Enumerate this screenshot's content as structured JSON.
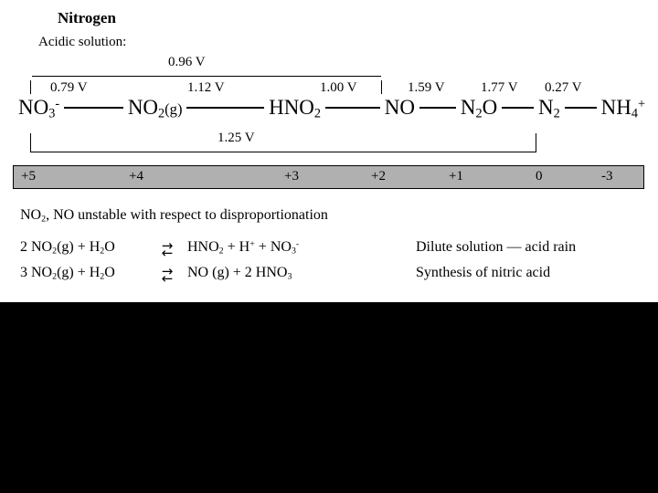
{
  "slide": {
    "title": "Nitrogen",
    "subtitle": "Acidic solution:"
  },
  "latimer": {
    "top_bracket_label": "0.96 V",
    "bottom_bracket_label": "1.25 V",
    "potentials": [
      "0.79 V",
      "1.12 V",
      "1.00 V",
      "1.59 V",
      "1.77 V",
      "0.27 V"
    ],
    "chain": [
      {
        "parts": [
          [
            "NO"
          ],
          [
            "3",
            "sub"
          ],
          [
            "-",
            "sup"
          ]
        ]
      },
      {
        "parts": [
          [
            "NO"
          ],
          [
            "2",
            "sub"
          ],
          [
            "(g)",
            "pn"
          ]
        ]
      },
      {
        "parts": [
          [
            "HNO"
          ],
          [
            "2",
            "sub"
          ]
        ]
      },
      {
        "parts": [
          [
            "NO"
          ]
        ]
      },
      {
        "parts": [
          [
            "N"
          ],
          [
            "2",
            "sub"
          ],
          [
            "O"
          ]
        ]
      },
      {
        "parts": [
          [
            "N"
          ],
          [
            "2",
            "sub"
          ]
        ]
      },
      {
        "parts": [
          [
            "NH"
          ],
          [
            "4",
            "sub"
          ],
          [
            "+",
            "sup"
          ]
        ]
      }
    ],
    "oxidation_states": [
      "+5",
      "+4",
      "+3",
      "+2",
      "+1",
      "0",
      "-3"
    ]
  },
  "note": {
    "parts": [
      [
        "NO"
      ],
      [
        "2",
        "sub"
      ],
      [
        ", NO unstable with respect to disproportionation"
      ]
    ]
  },
  "icons": {
    "equilibrium_top": "→",
    "equilibrium_bottom": "←"
  },
  "reactions": [
    {
      "lhs": [
        [
          "2 NO"
        ],
        [
          "2",
          "sub"
        ],
        [
          "(g) + H"
        ],
        [
          "2",
          "sub"
        ],
        [
          "O"
        ]
      ],
      "rhs": [
        [
          "HNO"
        ],
        [
          "2",
          "sub"
        ],
        [
          " + H"
        ],
        [
          "+",
          "sup"
        ],
        [
          " + NO"
        ],
        [
          "3",
          "sub"
        ],
        [
          "-",
          "sup"
        ]
      ],
      "note": "Dilute solution — acid rain"
    },
    {
      "lhs": [
        [
          "3 NO"
        ],
        [
          "2",
          "sub"
        ],
        [
          "(g) + H"
        ],
        [
          "2",
          "sub"
        ],
        [
          "O"
        ]
      ],
      "rhs": [
        [
          "NO (g) + 2 HNO"
        ],
        [
          "3",
          "sub"
        ]
      ],
      "note": "Synthesis of nitric acid"
    }
  ]
}
